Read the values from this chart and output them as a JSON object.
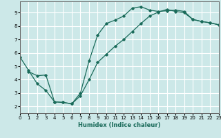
{
  "xlabel": "Humidex (Indice chaleur)",
  "background_color": "#cce8e8",
  "grid_color": "#ffffff",
  "line_color": "#1a6b5a",
  "xlim": [
    0,
    23
  ],
  "ylim": [
    1.5,
    9.85
  ],
  "xticks": [
    0,
    1,
    2,
    3,
    4,
    5,
    6,
    7,
    8,
    9,
    10,
    11,
    12,
    13,
    14,
    15,
    16,
    17,
    18,
    19,
    20,
    21,
    22,
    23
  ],
  "yticks": [
    2,
    3,
    4,
    5,
    6,
    7,
    8,
    9
  ],
  "line1_x": [
    0,
    1,
    2,
    3,
    4,
    5,
    6,
    7,
    8,
    9,
    10,
    11,
    12,
    13,
    14,
    15,
    16,
    17,
    18,
    19,
    20,
    21,
    22,
    23
  ],
  "line1_y": [
    5.7,
    4.7,
    3.7,
    3.2,
    2.35,
    2.3,
    2.2,
    2.8,
    4.0,
    5.3,
    5.9,
    6.5,
    7.0,
    7.6,
    8.2,
    8.75,
    9.05,
    9.25,
    9.1,
    9.0,
    8.5,
    8.35,
    8.25,
    8.1
  ],
  "line2_x": [
    1,
    2,
    3,
    4,
    5,
    6,
    7,
    8,
    9,
    10,
    11,
    12,
    13,
    14,
    15,
    16,
    17,
    18,
    19,
    20,
    21,
    22,
    23
  ],
  "line2_y": [
    4.6,
    4.3,
    4.35,
    2.35,
    2.3,
    2.2,
    3.0,
    5.4,
    7.35,
    8.2,
    8.45,
    8.75,
    9.35,
    9.45,
    9.2,
    9.1,
    9.15,
    9.2,
    9.1,
    8.5,
    8.35,
    8.25,
    8.1
  ]
}
